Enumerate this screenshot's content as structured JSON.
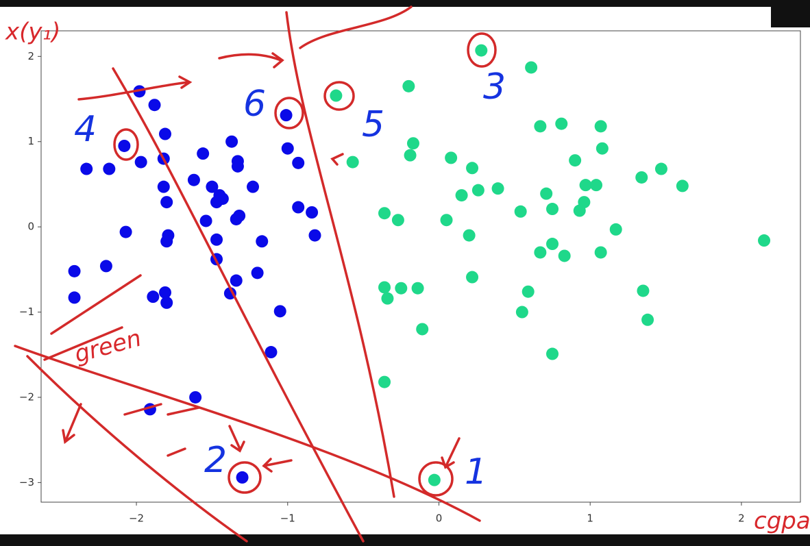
{
  "chart_data": {
    "type": "scatter",
    "xlim": [
      -2.63,
      2.39
    ],
    "ylim": [
      -3.23,
      2.3
    ],
    "xticks": [
      {
        "value": -2,
        "label": "−2"
      },
      {
        "value": -1,
        "label": "−1"
      },
      0,
      1,
      2
    ],
    "yticks": [
      2,
      1,
      0,
      {
        "value": -1,
        "label": "−1"
      },
      {
        "value": -2,
        "label": "−2"
      },
      {
        "value": -3,
        "label": "−3"
      }
    ],
    "series": [
      {
        "color": "#0a0ae8",
        "x": [
          -1.98,
          -1.88,
          -1.01,
          -2.08,
          -1.81,
          -2.33,
          -2.18,
          -1.97,
          -1.82,
          -1.56,
          -1.37,
          -1.33,
          -1.33,
          -1.0,
          -0.93,
          -1.62,
          -1.82,
          -1.8,
          -1.5,
          -1.45,
          -1.47,
          -1.43,
          -1.23,
          -0.93,
          -0.84,
          -0.82,
          -1.34,
          -1.32,
          -1.54,
          -2.07,
          -1.79,
          -1.8,
          -1.47,
          -1.17,
          -1.47,
          -2.41,
          -2.2,
          -1.2,
          -1.34,
          -1.38,
          -2.41,
          -1.89,
          -1.81,
          -1.8,
          -1.05,
          -1.11,
          -1.61,
          -1.91,
          -1.3
        ],
        "values": [
          1.59,
          1.43,
          1.31,
          0.95,
          1.09,
          0.68,
          0.68,
          0.76,
          0.8,
          0.86,
          1.0,
          0.77,
          0.71,
          0.92,
          0.75,
          0.55,
          0.47,
          0.29,
          0.47,
          0.37,
          0.29,
          0.33,
          0.47,
          0.23,
          0.17,
          -0.1,
          0.09,
          0.13,
          0.07,
          -0.06,
          -0.1,
          -0.17,
          -0.15,
          -0.17,
          -0.38,
          -0.52,
          -0.46,
          -0.54,
          -0.63,
          -0.78,
          -0.83,
          -0.82,
          -0.77,
          -0.89,
          -0.99,
          -1.47,
          -2.0,
          -2.14,
          -2.94
        ]
      },
      {
        "color": "#1fd88a",
        "x": [
          0.28,
          0.61,
          -0.2,
          -0.68,
          0.67,
          0.81,
          1.07,
          1.08,
          -0.17,
          -0.19,
          -0.57,
          0.08,
          0.22,
          0.9,
          1.47,
          1.34,
          1.61,
          0.26,
          0.39,
          0.15,
          0.71,
          0.97,
          1.04,
          0.96,
          0.93,
          0.75,
          0.54,
          -0.36,
          -0.27,
          0.05,
          1.17,
          0.2,
          2.15,
          0.75,
          0.67,
          0.83,
          1.07,
          0.22,
          -0.36,
          -0.25,
          -0.14,
          -0.34,
          0.59,
          1.35,
          0.55,
          1.38,
          -0.11,
          0.75,
          -0.36,
          -0.03
        ],
        "values": [
          2.07,
          1.87,
          1.65,
          1.54,
          1.18,
          1.21,
          1.18,
          0.92,
          0.98,
          0.84,
          0.76,
          0.81,
          0.69,
          0.78,
          0.68,
          0.58,
          0.48,
          0.43,
          0.45,
          0.37,
          0.39,
          0.49,
          0.49,
          0.29,
          0.19,
          0.21,
          0.18,
          0.16,
          0.08,
          0.08,
          -0.03,
          -0.1,
          -0.16,
          -0.2,
          -0.3,
          -0.34,
          -0.3,
          -0.59,
          -0.71,
          -0.72,
          -0.72,
          -0.84,
          -0.76,
          -0.75,
          -1.0,
          -1.09,
          -1.2,
          -1.49,
          -1.82,
          -2.97
        ]
      }
    ],
    "annotations": [
      "x(y₁)",
      "4",
      "6",
      "5",
      "3",
      "2",
      "1",
      "green",
      "cgpa"
    ]
  }
}
